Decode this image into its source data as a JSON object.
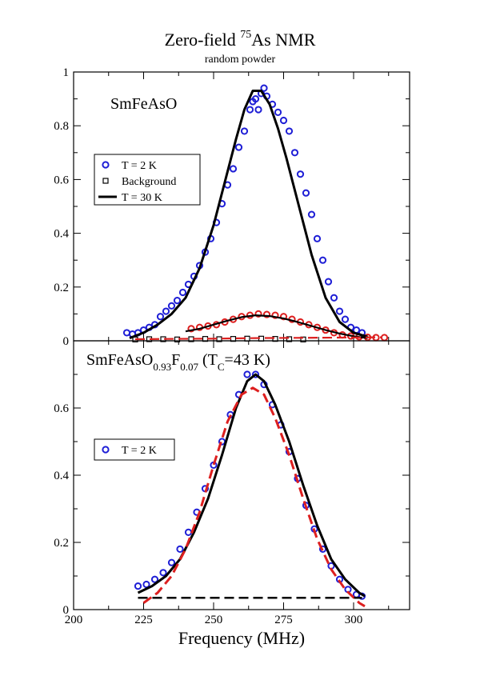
{
  "title": {
    "main_prefix": "Zero-field ",
    "superscript": "75",
    "main_suffix": "As NMR",
    "subtitle": "random powder"
  },
  "colors": {
    "blue": "#1f1fd6",
    "red": "#dd1f1f",
    "black": "#000000"
  },
  "chart_data": [
    {
      "type": "scatter",
      "panel": "top",
      "label": "SmFeAsO",
      "xlim": [
        200,
        320
      ],
      "ylim": [
        0,
        1
      ],
      "yticks": [
        {
          "v": 0,
          "label": "0"
        },
        {
          "v": 0.2,
          "label": "0.2"
        },
        {
          "v": 0.4,
          "label": "0.4"
        },
        {
          "v": 0.6,
          "label": "0.6"
        },
        {
          "v": 0.8,
          "label": "0.8"
        },
        {
          "v": 1,
          "label": "1"
        }
      ],
      "legend": {
        "position": "left",
        "entries": [
          {
            "name": "T = 2 K",
            "marker": "circle-blue"
          },
          {
            "name": "Background",
            "marker": "square-black"
          },
          {
            "name": "T = 30 K",
            "marker": "line-black"
          }
        ]
      },
      "series": [
        {
          "name": "T = 2 K",
          "kind": "points",
          "marker": "circle",
          "color": "#1f1fd6",
          "x": [
            219,
            221,
            223,
            225,
            227,
            229,
            231,
            233,
            235,
            237,
            239,
            241,
            243,
            245,
            247,
            249,
            251,
            253,
            255,
            257,
            259,
            261,
            263,
            264,
            265,
            266,
            267,
            268,
            269,
            271,
            273,
            275,
            277,
            279,
            281,
            283,
            285,
            287,
            289,
            291,
            293,
            295,
            297,
            299,
            301,
            303
          ],
          "y": [
            0.03,
            0.025,
            0.03,
            0.04,
            0.05,
            0.06,
            0.09,
            0.11,
            0.13,
            0.15,
            0.18,
            0.21,
            0.24,
            0.28,
            0.33,
            0.38,
            0.44,
            0.51,
            0.58,
            0.64,
            0.72,
            0.78,
            0.86,
            0.89,
            0.9,
            0.86,
            0.92,
            0.94,
            0.91,
            0.88,
            0.85,
            0.82,
            0.78,
            0.7,
            0.62,
            0.55,
            0.47,
            0.38,
            0.3,
            0.22,
            0.16,
            0.11,
            0.08,
            0.05,
            0.04,
            0.03
          ]
        },
        {
          "name": "T = 2 K (background-level)",
          "kind": "points",
          "marker": "circle",
          "color": "#dd1f1f",
          "x": [
            242,
            245,
            248,
            251,
            254,
            257,
            260,
            263,
            266,
            269,
            272,
            275,
            278,
            281,
            284,
            287,
            290,
            293,
            296,
            299,
            302,
            305,
            308,
            311
          ],
          "y": [
            0.045,
            0.05,
            0.055,
            0.06,
            0.07,
            0.08,
            0.09,
            0.095,
            0.1,
            0.098,
            0.095,
            0.09,
            0.08,
            0.07,
            0.06,
            0.05,
            0.04,
            0.03,
            0.022,
            0.018,
            0.015,
            0.013,
            0.012,
            0.012
          ]
        },
        {
          "name": "Background",
          "kind": "points",
          "marker": "square",
          "color": "#000000",
          "x": [
            222,
            227,
            232,
            237,
            242,
            247,
            252,
            257,
            262,
            267,
            272,
            277,
            282
          ],
          "y": [
            0.005,
            0.006,
            0.006,
            0.005,
            0.006,
            0.007,
            0.006,
            0.007,
            0.008,
            0.008,
            0.007,
            0.006,
            0.005
          ]
        },
        {
          "name": "T = 30 K",
          "kind": "line",
          "color": "#000000",
          "dash": false,
          "width": 3,
          "x": [
            220,
            225,
            230,
            235,
            240,
            245,
            250,
            255,
            258,
            261,
            264,
            267,
            270,
            273,
            276,
            280,
            285,
            290,
            295,
            300,
            305
          ],
          "y": [
            0.01,
            0.03,
            0.06,
            0.1,
            0.16,
            0.27,
            0.43,
            0.63,
            0.75,
            0.86,
            0.93,
            0.93,
            0.88,
            0.79,
            0.68,
            0.52,
            0.32,
            0.16,
            0.07,
            0.03,
            0.015
          ]
        },
        {
          "name": "fit",
          "kind": "line",
          "color": "#000000",
          "dash": false,
          "width": 2.2,
          "x": [
            240,
            245,
            250,
            255,
            260,
            265,
            270,
            275,
            280,
            285,
            290,
            295,
            300,
            305
          ],
          "y": [
            0.035,
            0.045,
            0.06,
            0.075,
            0.088,
            0.095,
            0.092,
            0.083,
            0.07,
            0.055,
            0.04,
            0.027,
            0.017,
            0.01
          ]
        },
        {
          "name": "baseline",
          "kind": "line",
          "color": "#dd1f1f",
          "dash": true,
          "width": 2.2,
          "x": [
            222,
            235,
            250,
            265,
            280,
            295,
            310
          ],
          "y": [
            0.006,
            0.007,
            0.008,
            0.01,
            0.011,
            0.012,
            0.013
          ]
        }
      ]
    },
    {
      "type": "scatter",
      "panel": "bottom",
      "label_main": "SmFeAsO",
      "label_sub1": "0.93",
      "label_mid": "F",
      "label_sub2": "0.07",
      "label_tc_open": "  (T",
      "label_tc_sub": "C",
      "label_tc_close": "=43 K)",
      "xlim": [
        200,
        320
      ],
      "ylim": [
        0,
        0.8
      ],
      "xticks": [
        {
          "v": 200,
          "label": "200"
        },
        {
          "v": 225,
          "label": "225"
        },
        {
          "v": 250,
          "label": "250"
        },
        {
          "v": 275,
          "label": "275"
        },
        {
          "v": 300,
          "label": "300"
        }
      ],
      "yticks": [
        {
          "v": 0,
          "label": "0"
        },
        {
          "v": 0.2,
          "label": "0.2"
        },
        {
          "v": 0.4,
          "label": "0.4"
        },
        {
          "v": 0.6,
          "label": "0.6"
        }
      ],
      "xlabel": "Frequency (MHz)",
      "legend": {
        "position": "left",
        "entries": [
          {
            "name": "T = 2 K",
            "marker": "circle-blue"
          }
        ]
      },
      "series": [
        {
          "name": "T = 2 K",
          "kind": "points",
          "marker": "circle",
          "color": "#1f1fd6",
          "x": [
            223,
            226,
            229,
            232,
            235,
            238,
            241,
            244,
            247,
            250,
            253,
            256,
            259,
            262,
            265,
            268,
            271,
            274,
            277,
            280,
            283,
            286,
            289,
            292,
            295,
            298,
            301,
            303
          ],
          "y": [
            0.07,
            0.075,
            0.09,
            0.11,
            0.14,
            0.18,
            0.23,
            0.29,
            0.36,
            0.43,
            0.5,
            0.58,
            0.64,
            0.7,
            0.7,
            0.67,
            0.61,
            0.55,
            0.47,
            0.39,
            0.31,
            0.24,
            0.18,
            0.13,
            0.09,
            0.06,
            0.045,
            0.04
          ]
        },
        {
          "name": "fit-black",
          "kind": "line",
          "color": "#000000",
          "dash": false,
          "width": 3,
          "x": [
            223,
            228,
            233,
            238,
            243,
            248,
            253,
            258,
            262,
            265,
            268,
            272,
            277,
            282,
            287,
            292,
            297,
            302,
            304
          ],
          "y": [
            0.05,
            0.07,
            0.1,
            0.15,
            0.23,
            0.33,
            0.46,
            0.6,
            0.68,
            0.7,
            0.68,
            0.61,
            0.5,
            0.37,
            0.25,
            0.15,
            0.09,
            0.05,
            0.04
          ]
        },
        {
          "name": "fit-red",
          "kind": "line",
          "color": "#dd1f1f",
          "dash": true,
          "width": 3,
          "x": [
            225,
            230,
            235,
            240,
            245,
            250,
            255,
            260,
            264,
            268,
            272,
            277,
            282,
            287,
            292,
            297,
            302,
            304
          ],
          "y": [
            0.02,
            0.05,
            0.1,
            0.18,
            0.29,
            0.43,
            0.56,
            0.64,
            0.66,
            0.64,
            0.57,
            0.46,
            0.33,
            0.21,
            0.12,
            0.06,
            0.02,
            0.01
          ]
        },
        {
          "name": "background",
          "kind": "line",
          "color": "#000000",
          "dash": true,
          "width": 2.5,
          "x": [
            223,
            303
          ],
          "y": [
            0.035,
            0.035
          ]
        }
      ]
    }
  ]
}
